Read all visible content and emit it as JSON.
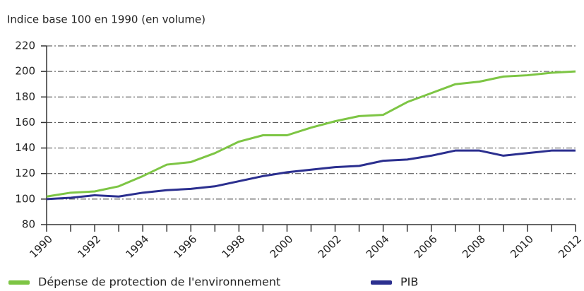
{
  "chart_data": {
    "type": "line",
    "title": "Indice base 100 en 1990 (en volume)",
    "x": [
      1990,
      1991,
      1992,
      1993,
      1994,
      1995,
      1996,
      1997,
      1998,
      1999,
      2000,
      2001,
      2002,
      2003,
      2004,
      2005,
      2006,
      2007,
      2008,
      2009,
      2010,
      2011,
      2012
    ],
    "series": [
      {
        "name": "Dépense de protection de l'environnement",
        "color": "#7dc544",
        "values": [
          102,
          105,
          106,
          110,
          118,
          127,
          129,
          136,
          145,
          150,
          150,
          156,
          161,
          165,
          166,
          176,
          183,
          190,
          192,
          196,
          197,
          199,
          200
        ]
      },
      {
        "name": "PIB",
        "color": "#2b2f8f",
        "values": [
          100,
          101,
          103,
          102,
          105,
          107,
          108,
          110,
          114,
          118,
          121,
          123,
          125,
          126,
          130,
          131,
          134,
          138,
          138,
          134,
          136,
          138,
          138
        ]
      }
    ],
    "xlim": [
      1990,
      2012
    ],
    "xticks": [
      1990,
      1992,
      1994,
      1996,
      1998,
      2000,
      2002,
      2004,
      2006,
      2008,
      2010,
      2012
    ],
    "xminorticks": [
      1991,
      1993,
      1995,
      1997,
      1999,
      2001,
      2003,
      2005,
      2007,
      2009,
      2011
    ],
    "ylim": [
      80,
      220
    ],
    "yticks": [
      80,
      100,
      120,
      140,
      160,
      180,
      200,
      220
    ],
    "grid": true,
    "legend": "bottom"
  }
}
